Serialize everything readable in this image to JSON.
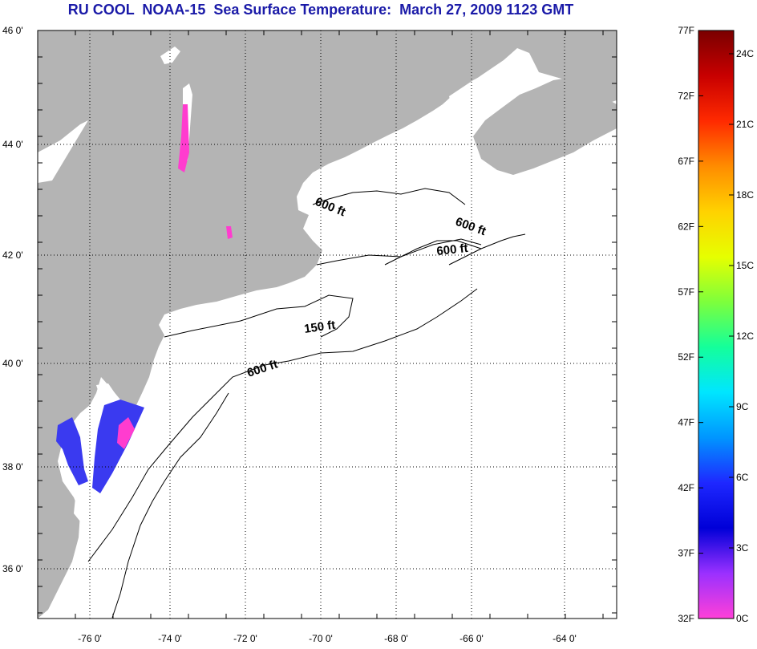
{
  "title": "RU COOL  NOAA-15  Sea Surface Temperature:  March 27, 2009 1123 GMT",
  "title_color": "#1a1aa8",
  "colors": {
    "land": "#b4b4b4",
    "ocean": "#ffffff",
    "cold_sst": "#3a3af0",
    "coldest_sst": "#ff3ccf",
    "contour": "#000000"
  },
  "map": {
    "lat_labels": [
      "46 0'",
      "44 0'",
      "42 0'",
      "40 0'",
      "38 0'",
      "36 0'"
    ],
    "lon_labels": [
      "-76 0'",
      "-74 0'",
      "-72 0'",
      "-70 0'",
      "-68 0'",
      "-66 0'",
      "-64 0'"
    ],
    "contour_labels": [
      {
        "text": "600 ft",
        "rotate": 22
      },
      {
        "text": "600 ft",
        "rotate": 20
      },
      {
        "text": "600 ft",
        "rotate": -6
      },
      {
        "text": "150 ft",
        "rotate": -8
      },
      {
        "text": "600 ft",
        "rotate": -18
      }
    ]
  },
  "colorbar": {
    "f_labels": [
      "77F",
      "72F",
      "67F",
      "62F",
      "57F",
      "52F",
      "47F",
      "42F",
      "37F",
      "32F"
    ],
    "c_labels": [
      "24C",
      "21C",
      "18C",
      "15C",
      "12C",
      "9C",
      "6C",
      "3C",
      "0C"
    ],
    "gradient_stops": [
      "#7a0000",
      "#c80000",
      "#ff2a00",
      "#ff8c00",
      "#ffd200",
      "#e6ff00",
      "#7dff3c",
      "#14ff9a",
      "#00e6ff",
      "#0096ff",
      "#1e28ff",
      "#0000d8",
      "#9a30ff",
      "#ff40d8"
    ]
  }
}
